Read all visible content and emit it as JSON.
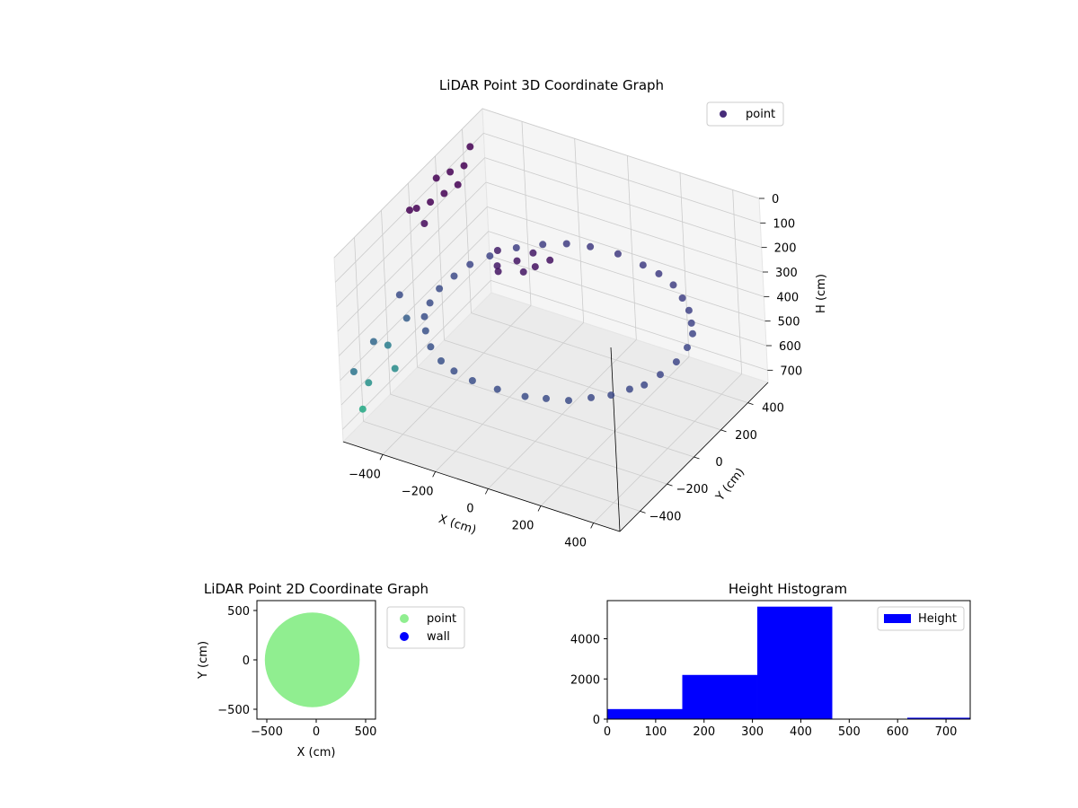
{
  "chart_data": [
    {
      "type": "scatter3d",
      "title": "LiDAR Point 3D Coordinate Graph",
      "xlabel": "X (cm)",
      "ylabel": "Y (cm)",
      "zlabel": "H (cm)",
      "xticks": [
        -400,
        -200,
        0,
        200,
        400
      ],
      "yticks": [
        -400,
        -200,
        0,
        200,
        400
      ],
      "zticks": [
        0,
        100,
        200,
        300,
        400,
        500,
        600,
        700
      ],
      "xlim": [
        -550,
        500
      ],
      "ylim": [
        -550,
        550
      ],
      "zlim": [
        0,
        750
      ],
      "z_inverted": true,
      "grid": true,
      "legend": {
        "placement": "top-right",
        "entries": [
          {
            "name": "point",
            "color": "#472c7a"
          }
        ]
      },
      "series": [
        {
          "name": "point",
          "description": "ring of points (radius ~450 cm) at heights ~330-420 cm, wall points near x=-550 at heights 80-700 cm, a cluster near the scanner at ~250 cm",
          "colormap": "viridis",
          "points": [
            [
              450,
              0,
              380
            ],
            [
              440,
              100,
              380
            ],
            [
              420,
              180,
              375
            ],
            [
              390,
              230,
              370
            ],
            [
              350,
              290,
              365
            ],
            [
              300,
              340,
              360
            ],
            [
              240,
              390,
              355
            ],
            [
              170,
              420,
              350
            ],
            [
              100,
              440,
              350
            ],
            [
              0,
              450,
              345
            ],
            [
              -100,
              440,
              345
            ],
            [
              -180,
              420,
              350
            ],
            [
              -250,
              380,
              355
            ],
            [
              -320,
              320,
              360
            ],
            [
              -380,
              240,
              370
            ],
            [
              -420,
              170,
              380
            ],
            [
              -440,
              90,
              390
            ],
            [
              -450,
              0,
              395
            ],
            [
              -440,
              -90,
              400
            ],
            [
              -420,
              -170,
              405
            ],
            [
              -380,
              -240,
              410
            ],
            [
              -320,
              -320,
              410
            ],
            [
              -250,
              -380,
              410
            ],
            [
              -180,
              -420,
              405
            ],
            [
              -100,
              -440,
              405
            ],
            [
              0,
              -450,
              400
            ],
            [
              100,
              -440,
              400
            ],
            [
              170,
              -420,
              395
            ],
            [
              240,
              -390,
              395
            ],
            [
              300,
              -340,
              390
            ],
            [
              350,
              -290,
              390
            ],
            [
              390,
              -230,
              385
            ],
            [
              420,
              -180,
              385
            ],
            [
              440,
              -100,
              380
            ],
            [
              -200,
              100,
              250
            ],
            [
              -150,
              50,
              250
            ],
            [
              -100,
              150,
              240
            ],
            [
              -250,
              50,
              260
            ],
            [
              -180,
              180,
              255
            ],
            [
              -300,
              150,
              270
            ],
            [
              -220,
              0,
              245
            ],
            [
              -120,
              80,
              235
            ],
            [
              -550,
              450,
              100
            ],
            [
              -550,
              400,
              150
            ],
            [
              -550,
              350,
              200
            ],
            [
              -550,
              300,
              120
            ],
            [
              -550,
              250,
              180
            ],
            [
              -550,
              200,
              90
            ],
            [
              -550,
              150,
              160
            ],
            [
              -550,
              100,
              220
            ],
            [
              -550,
              50,
              130
            ],
            [
              -550,
              0,
              110
            ],
            [
              -550,
              -100,
              400
            ],
            [
              -550,
              -200,
              550
            ],
            [
              -550,
              -300,
              480
            ],
            [
              -550,
              -350,
              620
            ],
            [
              -550,
              -400,
              700
            ],
            [
              -550,
              -450,
              520
            ],
            [
              -500,
              -250,
              600
            ],
            [
              -500,
              -150,
              450
            ]
          ]
        }
      ]
    },
    {
      "type": "scatter",
      "title": "LiDAR Point 2D Coordinate Graph",
      "xlabel": "X (cm)",
      "ylabel": "Y (cm)",
      "xticks": [
        -500,
        0,
        500
      ],
      "yticks": [
        -500,
        0,
        500
      ],
      "xlim": [
        -600,
        600
      ],
      "ylim": [
        -600,
        600
      ],
      "legend": {
        "placement": "outside-right",
        "entries": [
          {
            "name": "point",
            "color": "#90ee90"
          },
          {
            "name": "wall",
            "color": "#0000ff"
          }
        ]
      },
      "series": [
        {
          "name": "point",
          "color": "#90ee90",
          "description": "filled disc of radius ~480 cm centred near the origin, with gaps near x=-500",
          "disc": {
            "cx": -40,
            "cy": 0,
            "r": 480
          }
        },
        {
          "name": "wall",
          "color": "#0000ff",
          "points": []
        }
      ]
    },
    {
      "type": "histogram",
      "title": "Height Histogram",
      "xticks": [
        0,
        100,
        200,
        300,
        400,
        500,
        600,
        700
      ],
      "yticks": [
        0,
        2000,
        4000
      ],
      "xlim": [
        0,
        750
      ],
      "ylim": [
        0,
        5900
      ],
      "color": "#0000ff",
      "legend": {
        "placement": "top-right",
        "entries": [
          {
            "name": "Height",
            "color": "#0000ff"
          }
        ]
      },
      "bins": [
        {
          "x0": 0,
          "x1": 155,
          "count": 500
        },
        {
          "x0": 155,
          "x1": 310,
          "count": 2200
        },
        {
          "x0": 310,
          "x1": 465,
          "count": 5600
        },
        {
          "x0": 465,
          "x1": 620,
          "count": 0
        },
        {
          "x0": 620,
          "x1": 750,
          "count": 70
        }
      ]
    }
  ]
}
